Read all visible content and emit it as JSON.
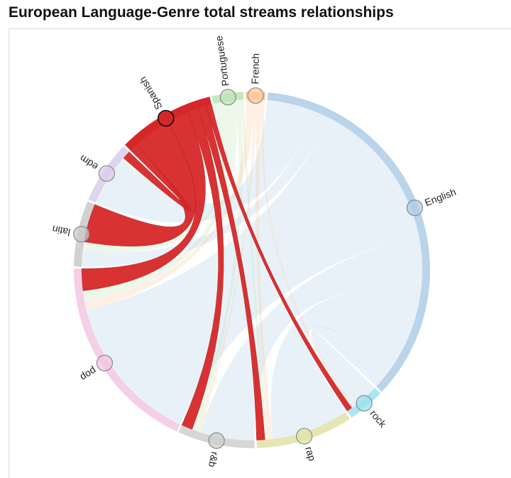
{
  "title": "European Language-Genre total streams relationships",
  "chart_data": {
    "type": "chord",
    "title": "European Language-Genre total streams relationships",
    "highlighted": "Spanish",
    "nodes": [
      {
        "name": "English",
        "group": "language",
        "color": "#aecde6"
      },
      {
        "name": "rock",
        "group": "genre",
        "color": "#9be2ee"
      },
      {
        "name": "rap",
        "group": "genre",
        "color": "#dfe3a4"
      },
      {
        "name": "r&b",
        "group": "genre",
        "color": "#cfcfcf"
      },
      {
        "name": "pop",
        "group": "genre",
        "color": "#f3c6e4"
      },
      {
        "name": "latin",
        "group": "genre",
        "color": "#c9c9c9"
      },
      {
        "name": "edm",
        "group": "genre",
        "color": "#d9cdea"
      },
      {
        "name": "Spanish",
        "group": "language",
        "color": "#d62728"
      },
      {
        "name": "Portuguese",
        "group": "language",
        "color": "#bde4b3"
      },
      {
        "name": "French",
        "group": "language",
        "color": "#fdc99a"
      }
    ],
    "links": [
      {
        "source": "English",
        "target": "pop",
        "value": 55
      },
      {
        "source": "English",
        "target": "rap",
        "value": 28
      },
      {
        "source": "English",
        "target": "r&b",
        "value": 20
      },
      {
        "source": "English",
        "target": "rock",
        "value": 10
      },
      {
        "source": "English",
        "target": "edm",
        "value": 18
      },
      {
        "source": "English",
        "target": "latin",
        "value": 6
      },
      {
        "source": "Spanish",
        "target": "latin",
        "value": 14
      },
      {
        "source": "Spanish",
        "target": "pop",
        "value": 8
      },
      {
        "source": "Spanish",
        "target": "r&b",
        "value": 4
      },
      {
        "source": "Spanish",
        "target": "rap",
        "value": 3
      },
      {
        "source": "Spanish",
        "target": "rock",
        "value": 2
      },
      {
        "source": "Spanish",
        "target": "edm",
        "value": 3
      },
      {
        "source": "Portuguese",
        "target": "pop",
        "value": 4
      },
      {
        "source": "Portuguese",
        "target": "latin",
        "value": 3
      },
      {
        "source": "Portuguese",
        "target": "r&b",
        "value": 2
      },
      {
        "source": "Portuguese",
        "target": "rap",
        "value": 1
      },
      {
        "source": "Portuguese",
        "target": "edm",
        "value": 1
      },
      {
        "source": "French",
        "target": "pop",
        "value": 3
      },
      {
        "source": "French",
        "target": "rap",
        "value": 2
      },
      {
        "source": "French",
        "target": "r&b",
        "value": 1
      },
      {
        "source": "French",
        "target": "rock",
        "value": 1
      }
    ]
  }
}
